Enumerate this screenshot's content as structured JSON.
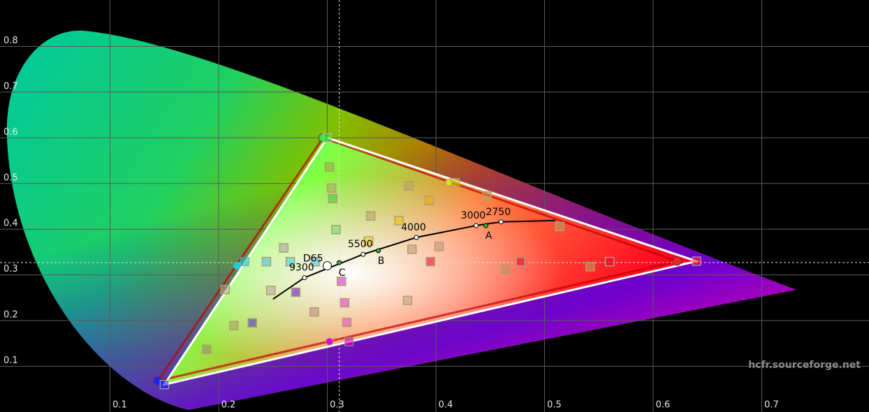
{
  "chart_data": {
    "type": "scatter",
    "xlim": [
      0,
      0.8
    ],
    "ylim": [
      0,
      0.9
    ],
    "xticks": [
      0.1,
      0.2,
      0.3,
      0.4,
      0.5,
      0.6,
      0.7
    ],
    "yticks": [
      0.1,
      0.2,
      0.3,
      0.4,
      0.5,
      0.6,
      0.7,
      0.8
    ],
    "grid": true,
    "reference_white": {
      "x": 0.311,
      "y": 0.327
    },
    "target_gamut": {
      "color": "#ffffff",
      "x": [
        0.64,
        0.3,
        0.15
      ],
      "y": [
        0.33,
        0.6,
        0.06
      ]
    },
    "measured_gamut": {
      "color": "#c00000",
      "x": [
        0.622,
        0.296,
        0.144
      ],
      "y": [
        0.33,
        0.6,
        0.068
      ]
    },
    "measured_secondaries": {
      "x": [
        0.412,
        0.217,
        0.302
      ],
      "y": [
        0.502,
        0.32,
        0.154
      ],
      "colors": [
        "#e8e000",
        "#00d8e8",
        "#e000e0"
      ]
    },
    "target_secondaries": {
      "x": [
        0.418,
        0.224,
        0.32
      ],
      "y": [
        0.502,
        0.329,
        0.154
      ],
      "colors": [
        "#c8c000",
        "#00c8d8",
        "#d000c8"
      ]
    },
    "blackbody": {
      "x": [
        0.25,
        0.279,
        0.333,
        0.382,
        0.437,
        0.46,
        0.51
      ],
      "y": [
        0.247,
        0.294,
        0.345,
        0.382,
        0.408,
        0.416,
        0.419
      ]
    },
    "temperature_labels": [
      {
        "label": "9300",
        "x": 0.279,
        "y": 0.294
      },
      {
        "label": "5500",
        "x": 0.333,
        "y": 0.345
      },
      {
        "label": "4000",
        "x": 0.382,
        "y": 0.382
      },
      {
        "label": "3000",
        "x": 0.437,
        "y": 0.408
      },
      {
        "label": "2750",
        "x": 0.46,
        "y": 0.416
      }
    ],
    "illuminants": [
      {
        "label": "A",
        "x": 0.446,
        "y": 0.408
      },
      {
        "label": "B",
        "x": 0.347,
        "y": 0.353
      },
      {
        "label": "C",
        "x": 0.311,
        "y": 0.327
      },
      {
        "label": "D65",
        "x": 0.3,
        "y": 0.32
      }
    ],
    "samples": {
      "x": [
        0.302,
        0.304,
        0.305,
        0.308,
        0.34,
        0.375,
        0.394,
        0.366,
        0.338,
        0.378,
        0.403,
        0.374,
        0.288,
        0.271,
        0.248,
        0.231,
        0.214,
        0.206,
        0.189,
        0.26,
        0.244,
        0.266,
        0.289,
        0.313,
        0.316,
        0.318,
        0.395,
        0.464,
        0.478,
        0.542,
        0.56,
        0.514,
        0.447
      ],
      "y": [
        0.536,
        0.49,
        0.467,
        0.399,
        0.429,
        0.495,
        0.463,
        0.419,
        0.374,
        0.356,
        0.362,
        0.244,
        0.219,
        0.262,
        0.266,
        0.195,
        0.189,
        0.268,
        0.137,
        0.359,
        0.329,
        0.329,
        0.329,
        0.286,
        0.239,
        0.196,
        0.329,
        0.312,
        0.329,
        0.318,
        0.329,
        0.406,
        0.473
      ],
      "colors": [
        "#a0a040",
        "#b0a060",
        "#40c040",
        "#60e060",
        "#c0a060",
        "#c0a060",
        "#f0b000",
        "#f0c000",
        "#f0d000",
        "#c09080",
        "#c09080",
        "#c0a080",
        "#c08080",
        "#6000d0",
        "#c0a0a0",
        "#4020d0",
        "#a0a060",
        "#b0a080",
        "#a08080",
        "#a0a0a0",
        "#30c0e0",
        "#30c8e8",
        "#40c0e0",
        "#d020d0",
        "#e030d0",
        "#e040c0",
        "#e00030",
        "#c09060",
        "#e00030",
        "#c0a060",
        "#e00030",
        "#c0a060",
        "#c0a060"
      ]
    },
    "watermark": "hcfr.sourceforge.net"
  }
}
